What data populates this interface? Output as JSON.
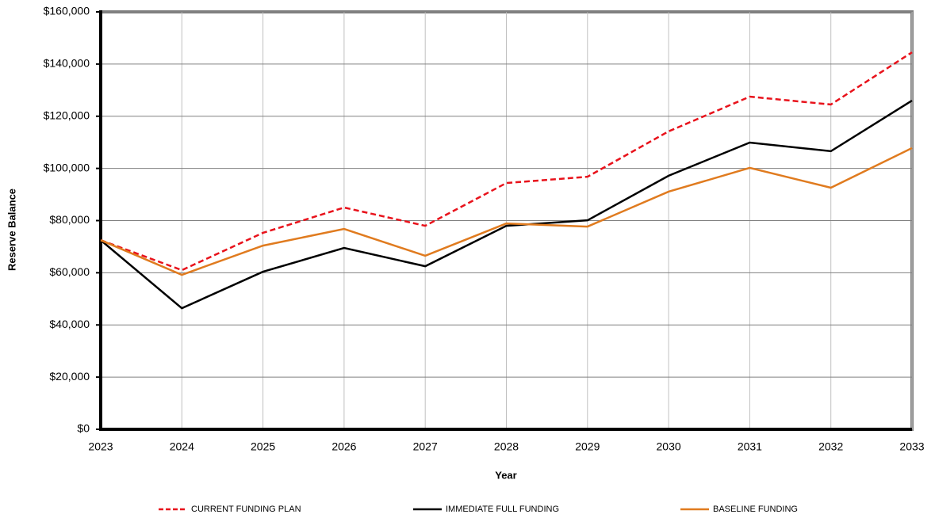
{
  "chart_data": {
    "type": "line",
    "x_label": "Year",
    "y_label": "Reserve Balance",
    "x": [
      2023,
      2024,
      2025,
      2026,
      2027,
      2028,
      2029,
      2030,
      2031,
      2032,
      2033
    ],
    "xlim": [
      2023,
      2033
    ],
    "xticks": [
      2023,
      2024,
      2025,
      2026,
      2027,
      2028,
      2029,
      2030,
      2031,
      2032,
      2033
    ],
    "ylim": [
      0,
      160000
    ],
    "yticks": [
      {
        "value": 0,
        "label": "$0"
      },
      {
        "value": 20000,
        "label": "$20,000"
      },
      {
        "value": 40000,
        "label": "$40,000"
      },
      {
        "value": 60000,
        "label": "$60,000"
      },
      {
        "value": 80000,
        "label": "$80,000"
      },
      {
        "value": 100000,
        "label": "$100,000"
      },
      {
        "value": 120000,
        "label": "$120,000"
      },
      {
        "value": 140000,
        "label": "$140,000"
      },
      {
        "value": 160000,
        "label": "$160,000"
      }
    ],
    "grid": true,
    "legend": "bottom",
    "series": [
      {
        "name": "CURRENT FUNDING PLAN",
        "color": "#e8121b",
        "line_style": "dashed",
        "values": [
          72500,
          61000,
          75300,
          85000,
          78000,
          94400,
          96800,
          114200,
          127500,
          124500,
          144500
        ]
      },
      {
        "name": "IMMEDIATE FULL FUNDING",
        "color": "#000000",
        "line_style": "solid",
        "values": [
          72500,
          46400,
          60400,
          69500,
          62500,
          78000,
          80100,
          97200,
          109900,
          106600,
          126000
        ]
      },
      {
        "name": "BASELINE FUNDING",
        "color": "#e07b1f",
        "line_style": "solid",
        "values": [
          72500,
          59200,
          70400,
          76800,
          66500,
          78900,
          77700,
          91100,
          100200,
          92600,
          107800
        ]
      }
    ]
  }
}
